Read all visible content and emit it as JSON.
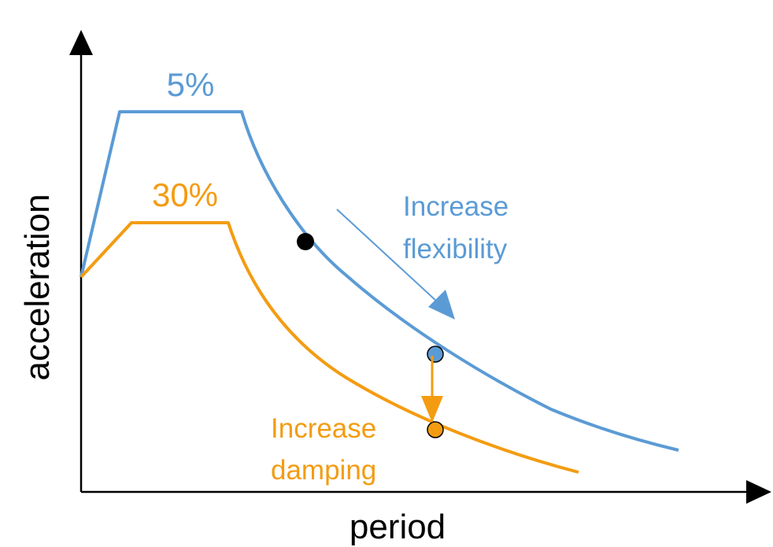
{
  "axes": {
    "x_label": "period",
    "y_label": "acceleration"
  },
  "curves": [
    {
      "label": "5%",
      "color": "#5B9BD5"
    },
    {
      "label": "30%",
      "color": "#F39C12"
    }
  ],
  "annotations": {
    "flexibility": {
      "line1": "Increase",
      "line2": "flexibility",
      "color": "#5B9BD5"
    },
    "damping": {
      "line1": "Increase",
      "line2": "damping",
      "color": "#F39C12"
    }
  },
  "colors": {
    "axis": "#000000",
    "blue": "#5B9BD5",
    "orange": "#F39C12",
    "black_point": "#000000"
  }
}
